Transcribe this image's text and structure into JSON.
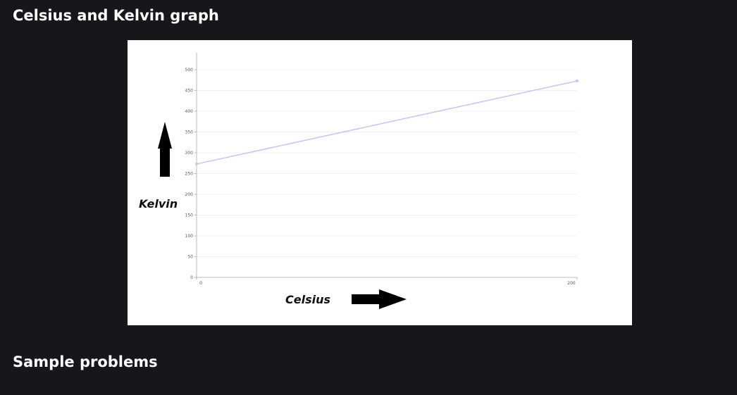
{
  "sections": {
    "graph_heading": "Celsius and Kelvin graph",
    "problems_heading": "Sample problems"
  },
  "figure": {
    "y_axis_annotation": "Kelvin",
    "x_axis_annotation": "Celsius",
    "y_arrow_icon": "arrow-up-icon",
    "x_arrow_icon": "arrow-right-icon"
  },
  "colors": {
    "page_background": "#16171b",
    "heading_text": "#ffffff",
    "line": "#c5c3f5",
    "grid": "#f0f0f0"
  },
  "chart_data": {
    "type": "line",
    "x": [
      0,
      200
    ],
    "y": [
      273,
      473
    ],
    "xlabel": "Celsius",
    "ylabel": "Kelvin",
    "x_ticks": [
      "0",
      "200"
    ],
    "y_ticks": [
      "0",
      "50",
      "100",
      "150",
      "200",
      "250",
      "300",
      "350",
      "400",
      "450",
      "500"
    ],
    "xlim": [
      0,
      200
    ],
    "ylim": [
      0,
      500
    ],
    "grid": true
  }
}
